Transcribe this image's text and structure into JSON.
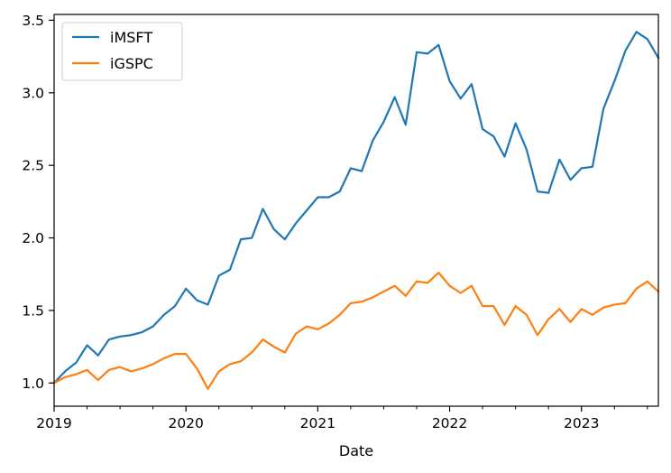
{
  "chart_data": {
    "type": "line",
    "xlabel": "Date",
    "ylabel": "",
    "x_start": "2019-01",
    "x_end": "2023-08",
    "ylim": [
      0.84,
      3.54
    ],
    "yticks": [
      1.0,
      1.5,
      2.0,
      2.5,
      3.0,
      3.5
    ],
    "ytick_labels": [
      "1.0",
      "1.5",
      "2.0",
      "2.5",
      "3.0",
      "3.5"
    ],
    "xticks": [
      "2019-01",
      "2020-01",
      "2021-01",
      "2022-01",
      "2023-01"
    ],
    "xtick_labels": [
      "2019",
      "2020",
      "2021",
      "2022",
      "2023"
    ],
    "x_minor_tick_months": [
      4,
      7,
      10
    ],
    "grid": false,
    "legend_position": "top-left",
    "months": [
      "2019-01",
      "2019-02",
      "2019-03",
      "2019-04",
      "2019-05",
      "2019-06",
      "2019-07",
      "2019-08",
      "2019-09",
      "2019-10",
      "2019-11",
      "2019-12",
      "2020-01",
      "2020-02",
      "2020-03",
      "2020-04",
      "2020-05",
      "2020-06",
      "2020-07",
      "2020-08",
      "2020-09",
      "2020-10",
      "2020-11",
      "2020-12",
      "2021-01",
      "2021-02",
      "2021-03",
      "2021-04",
      "2021-05",
      "2021-06",
      "2021-07",
      "2021-08",
      "2021-09",
      "2021-10",
      "2021-11",
      "2021-12",
      "2022-01",
      "2022-02",
      "2022-03",
      "2022-04",
      "2022-05",
      "2022-06",
      "2022-07",
      "2022-08",
      "2022-09",
      "2022-10",
      "2022-11",
      "2022-12",
      "2023-01",
      "2023-02",
      "2023-03",
      "2023-04",
      "2023-05",
      "2023-06",
      "2023-07",
      "2023-08"
    ],
    "series": [
      {
        "name": "iMSFT",
        "color": "#1f77b4",
        "values": [
          1.0,
          1.08,
          1.14,
          1.26,
          1.19,
          1.3,
          1.32,
          1.33,
          1.35,
          1.39,
          1.47,
          1.53,
          1.65,
          1.57,
          1.54,
          1.74,
          1.78,
          1.99,
          2.0,
          2.2,
          2.06,
          1.99,
          2.1,
          2.19,
          2.28,
          2.28,
          2.32,
          2.48,
          2.46,
          2.67,
          2.8,
          2.97,
          2.78,
          3.28,
          3.27,
          3.33,
          3.08,
          2.96,
          3.06,
          2.75,
          2.7,
          2.56,
          2.79,
          2.61,
          2.32,
          2.31,
          2.54,
          2.4,
          2.48,
          2.49,
          2.89,
          3.08,
          3.29,
          3.42,
          3.37,
          3.24
        ]
      },
      {
        "name": "iGSPC",
        "color": "#ff7f0e",
        "values": [
          1.0,
          1.04,
          1.06,
          1.09,
          1.02,
          1.09,
          1.11,
          1.08,
          1.1,
          1.13,
          1.17,
          1.2,
          1.2,
          1.1,
          0.96,
          1.08,
          1.13,
          1.15,
          1.21,
          1.3,
          1.25,
          1.21,
          1.34,
          1.39,
          1.37,
          1.41,
          1.47,
          1.55,
          1.56,
          1.59,
          1.63,
          1.67,
          1.6,
          1.7,
          1.69,
          1.76,
          1.67,
          1.62,
          1.67,
          1.53,
          1.53,
          1.4,
          1.53,
          1.47,
          1.33,
          1.44,
          1.51,
          1.42,
          1.51,
          1.47,
          1.52,
          1.54,
          1.55,
          1.65,
          1.7,
          1.63
        ]
      }
    ]
  }
}
